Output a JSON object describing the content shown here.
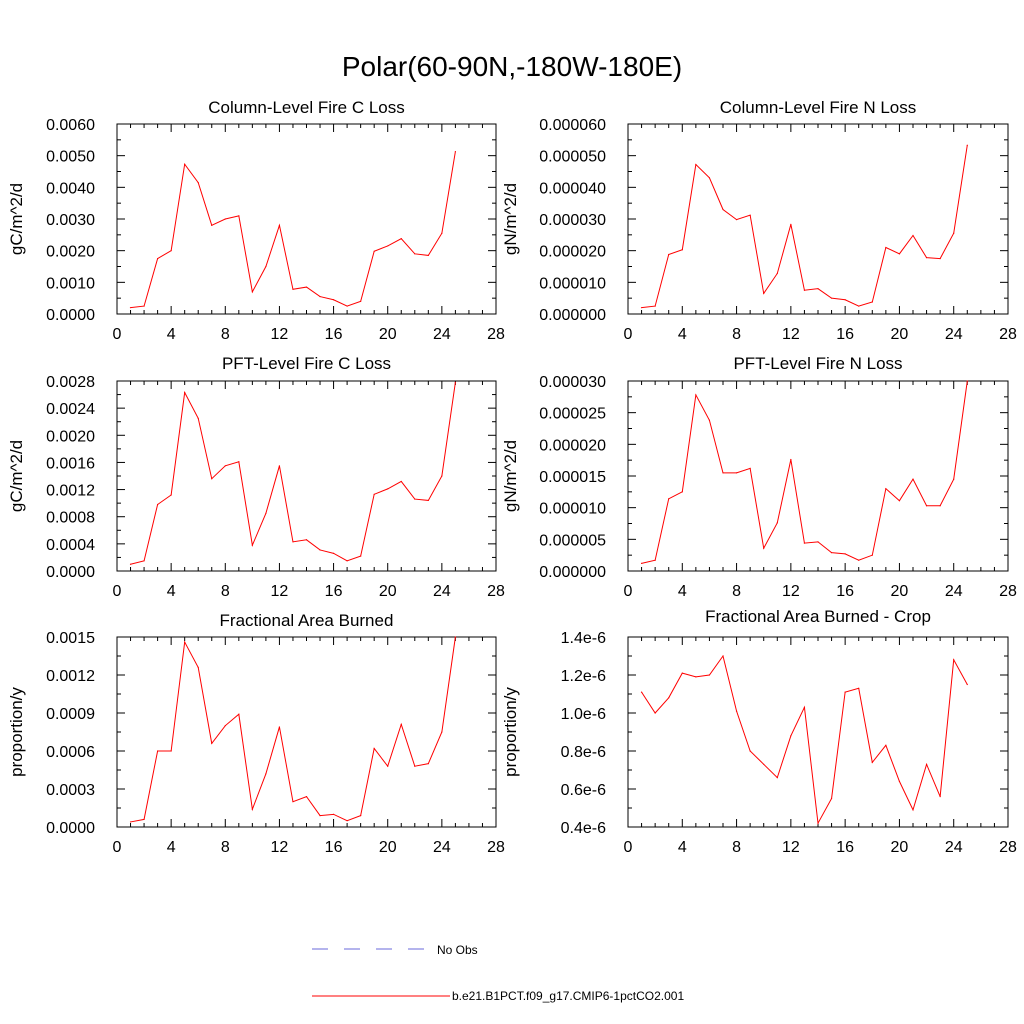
{
  "figure": {
    "title": "Polar(60-90N,-180W-180E)"
  },
  "legend": {
    "placement": "bottom-center",
    "entries": [
      {
        "label": "No Obs",
        "color": "#6a6adb",
        "style": "dashed"
      },
      {
        "label": "b.e21.B1PCT.f09_g17.CMIP6-1pctCO2.001",
        "color": "#ff0000",
        "style": "solid"
      }
    ]
  },
  "chart_data": [
    {
      "type": "line",
      "title": "Column-Level Fire C Loss",
      "ylabel": "gC/m^2/d",
      "xlim": [
        0,
        28
      ],
      "ylim": [
        0,
        0.006
      ],
      "xticks": [
        "0",
        "4",
        "8",
        "12",
        "16",
        "20",
        "24",
        "28"
      ],
      "yticks": [
        "0.0000",
        "0.0010",
        "0.0020",
        "0.0030",
        "0.0040",
        "0.0050",
        "0.0060"
      ],
      "series": [
        {
          "color": "#ff0000",
          "x": [
            1,
            2,
            3,
            4,
            5,
            6,
            7,
            8,
            9,
            10,
            11,
            12,
            13,
            14,
            15,
            16,
            17,
            18,
            19,
            20,
            21,
            22,
            23,
            24,
            25
          ],
          "y": [
            0.0002,
            0.00025,
            0.00175,
            0.002,
            0.00473,
            0.00415,
            0.0028,
            0.003,
            0.0031,
            0.0007,
            0.0015,
            0.0028,
            0.00078,
            0.00085,
            0.00055,
            0.00045,
            0.00025,
            0.0004,
            0.00198,
            0.00215,
            0.00238,
            0.0019,
            0.00185,
            0.00255,
            0.00513
          ]
        }
      ]
    },
    {
      "type": "line",
      "title": "Column-Level Fire N Loss",
      "ylabel": "gN/m^2/d",
      "xlim": [
        0,
        28
      ],
      "ylim": [
        0,
        6e-05
      ],
      "xticks": [
        "0",
        "4",
        "8",
        "12",
        "16",
        "20",
        "24",
        "28"
      ],
      "yticks": [
        "0.000000",
        "0.000010",
        "0.000020",
        "0.000030",
        "0.000040",
        "0.000050",
        "0.000060"
      ],
      "series": [
        {
          "color": "#ff0000",
          "x": [
            1,
            2,
            3,
            4,
            5,
            6,
            7,
            8,
            9,
            10,
            11,
            12,
            13,
            14,
            15,
            16,
            17,
            18,
            19,
            20,
            21,
            22,
            23,
            24,
            25
          ],
          "y": [
            2e-06,
            2.5e-06,
            1.88e-05,
            2.03e-05,
            4.72e-05,
            4.3e-05,
            3.3e-05,
            2.98e-05,
            3.12e-05,
            6.5e-06,
            1.28e-05,
            2.83e-05,
            7.5e-06,
            8e-06,
            5e-06,
            4.5e-06,
            2.5e-06,
            3.8e-06,
            2.1e-05,
            1.9e-05,
            2.48e-05,
            1.78e-05,
            1.75e-05,
            2.55e-05,
            5.33e-05
          ]
        }
      ]
    },
    {
      "type": "line",
      "title": "PFT-Level Fire C Loss",
      "ylabel": "gC/m^2/d",
      "xlim": [
        0,
        28
      ],
      "ylim": [
        0,
        0.0028
      ],
      "xticks": [
        "0",
        "4",
        "8",
        "12",
        "16",
        "20",
        "24",
        "28"
      ],
      "yticks": [
        "0.0000",
        "0.0004",
        "0.0008",
        "0.0012",
        "0.0016",
        "0.0020",
        "0.0024",
        "0.0028"
      ],
      "series": [
        {
          "color": "#ff0000",
          "x": [
            1,
            2,
            3,
            4,
            5,
            6,
            7,
            8,
            9,
            10,
            11,
            12,
            13,
            14,
            15,
            16,
            17,
            18,
            19,
            20,
            21,
            22,
            23,
            24,
            25
          ],
          "y": [
            0.0001,
            0.00015,
            0.00098,
            0.00112,
            0.00263,
            0.00225,
            0.00136,
            0.00155,
            0.00161,
            0.00038,
            0.00085,
            0.00155,
            0.00043,
            0.00046,
            0.00031,
            0.00026,
            0.00015,
            0.00022,
            0.00113,
            0.00121,
            0.00132,
            0.00106,
            0.00104,
            0.0014,
            0.00278
          ]
        }
      ]
    },
    {
      "type": "line",
      "title": "PFT-Level Fire N Loss",
      "ylabel": "gN/m^2/d",
      "xlim": [
        0,
        28
      ],
      "ylim": [
        0,
        3e-05
      ],
      "xticks": [
        "0",
        "4",
        "8",
        "12",
        "16",
        "20",
        "24",
        "28"
      ],
      "yticks": [
        "0.000000",
        "0.000005",
        "0.000010",
        "0.000015",
        "0.000020",
        "0.000025",
        "0.000030"
      ],
      "series": [
        {
          "color": "#ff0000",
          "x": [
            1,
            2,
            3,
            4,
            5,
            6,
            7,
            8,
            9,
            10,
            11,
            12,
            13,
            14,
            15,
            16,
            17,
            18,
            19,
            20,
            21,
            22,
            23,
            24,
            25
          ],
          "y": [
            1.2e-06,
            1.7e-06,
            1.14e-05,
            1.25e-05,
            2.78e-05,
            2.38e-05,
            1.55e-05,
            1.55e-05,
            1.62e-05,
            3.6e-06,
            7.6e-06,
            1.76e-05,
            4.4e-06,
            4.6e-06,
            2.9e-06,
            2.7e-06,
            1.7e-06,
            2.5e-06,
            1.3e-05,
            1.11e-05,
            1.45e-05,
            1.03e-05,
            1.03e-05,
            1.45e-05,
            3e-05
          ]
        }
      ]
    },
    {
      "type": "line",
      "title": "Fractional Area Burned",
      "ylabel": "proportion/y",
      "xlim": [
        0,
        28
      ],
      "ylim": [
        0,
        0.0015
      ],
      "xticks": [
        "0",
        "4",
        "8",
        "12",
        "16",
        "20",
        "24",
        "28"
      ],
      "yticks": [
        "0.0000",
        "0.0003",
        "0.0006",
        "0.0009",
        "0.0012",
        "0.0015"
      ],
      "series": [
        {
          "color": "#ff0000",
          "x": [
            1,
            2,
            3,
            4,
            5,
            6,
            7,
            8,
            9,
            10,
            11,
            12,
            13,
            14,
            15,
            16,
            17,
            18,
            19,
            20,
            21,
            22,
            23,
            24,
            25
          ],
          "y": [
            4e-05,
            6e-05,
            0.0006,
            0.0006,
            0.00146,
            0.00126,
            0.00066,
            0.0008,
            0.00089,
            0.00014,
            0.00042,
            0.00079,
            0.0002,
            0.00024,
            9e-05,
            0.0001,
            5e-05,
            9e-05,
            0.00062,
            0.00048,
            0.00081,
            0.00048,
            0.0005,
            0.00075,
            0.0015
          ]
        }
      ]
    },
    {
      "type": "line",
      "title": "Fractional Area Burned - Crop",
      "ylabel": "proportion/y",
      "xlim": [
        0,
        28
      ],
      "ylim": [
        4e-07,
        1.4e-06
      ],
      "xticks": [
        "0",
        "4",
        "8",
        "12",
        "16",
        "20",
        "24",
        "28"
      ],
      "yticks": [
        "0.4e-6",
        "0.6e-6",
        "0.8e-6",
        "1.0e-6",
        "1.2e-6",
        "1.4e-6"
      ],
      "series": [
        {
          "color": "#ff0000",
          "x": [
            1,
            2,
            3,
            4,
            5,
            6,
            7,
            8,
            9,
            10,
            11,
            12,
            13,
            14,
            15,
            16,
            17,
            18,
            19,
            20,
            21,
            22,
            23,
            24,
            25
          ],
          "y": [
            1.11e-06,
            1e-06,
            1.08e-06,
            1.21e-06,
            1.19e-06,
            1.2e-06,
            1.3e-06,
            1.01e-06,
            8e-07,
            7.3e-07,
            6.6e-07,
            8.8e-07,
            1.03e-06,
            4.2e-07,
            5.5e-07,
            1.11e-06,
            1.13e-06,
            7.4e-07,
            8.3e-07,
            6.4e-07,
            4.9e-07,
            7.3e-07,
            5.6e-07,
            1.28e-06,
            1.15e-06
          ]
        }
      ]
    }
  ]
}
